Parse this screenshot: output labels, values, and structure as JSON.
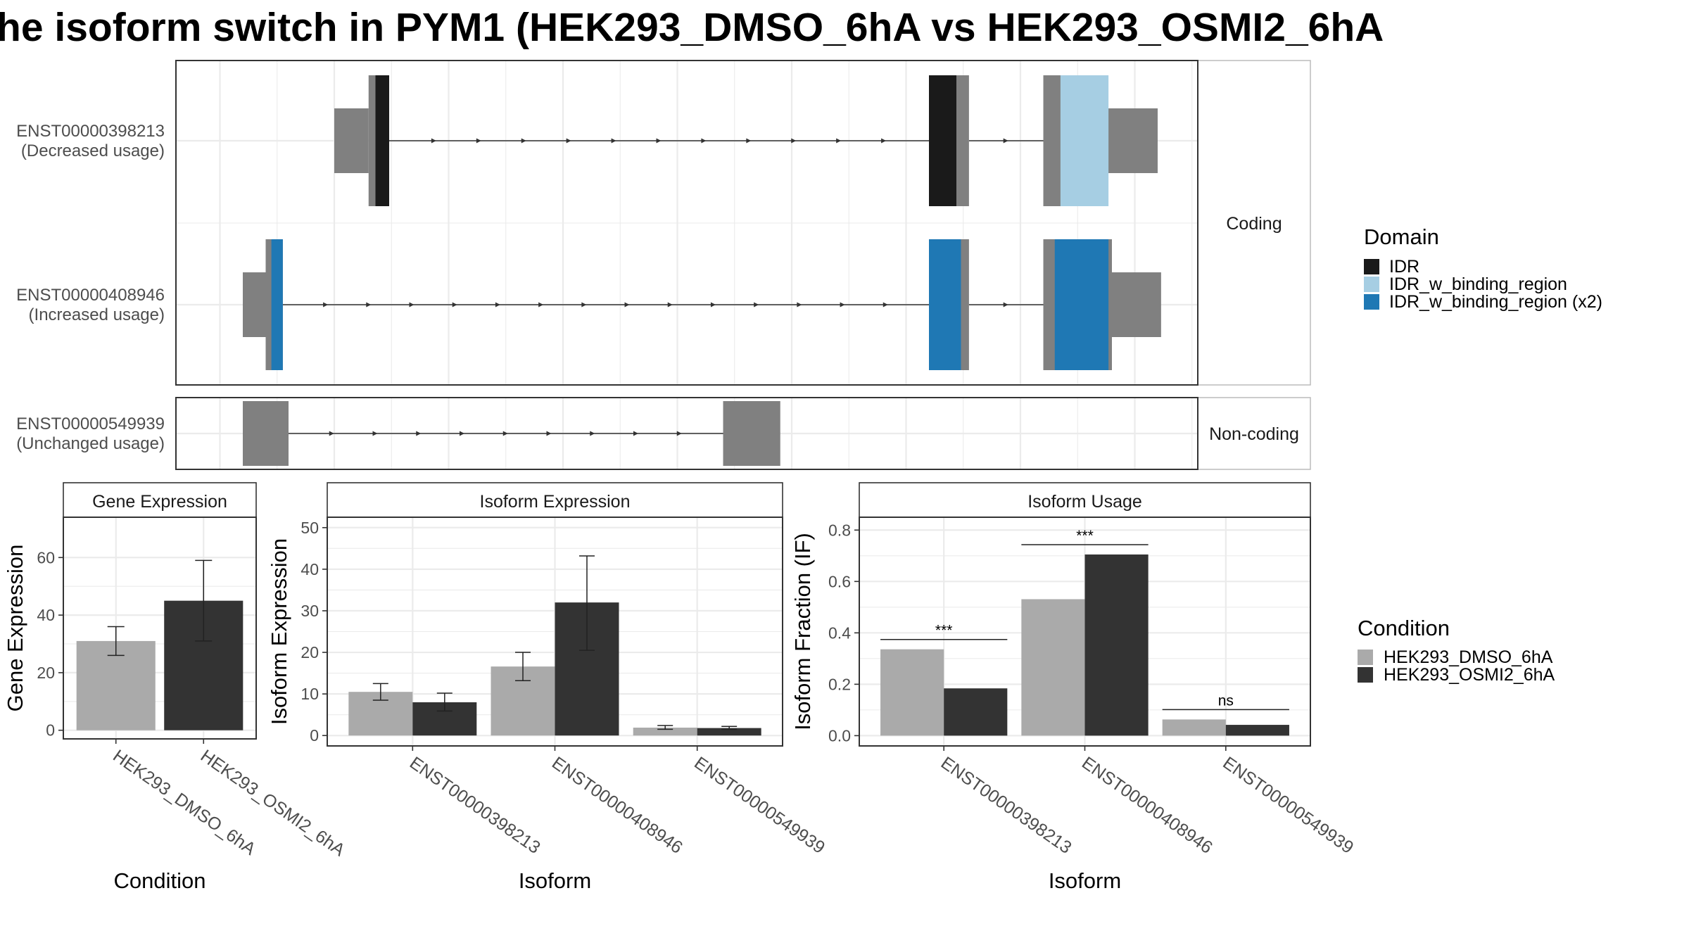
{
  "title": "he isoform switch in PYM1 (HEK293_DMSO_6hA vs HEK293_OSMI2_6hA",
  "colors": {
    "exon": "#808080",
    "intron": "#333333",
    "IDR": "#1a1a1a",
    "IDR_w_binding_region": "#a6cee3",
    "IDR_w_binding_region_x2": "#1f78b4",
    "dmso": "#aaaaaa",
    "osmi": "#333333",
    "panel_border": "#333333",
    "strip_border": "#bbbbbb",
    "grid": "#ebebeb",
    "text": "#4d4d4d"
  },
  "structure": {
    "strips": [
      "Coding",
      "Non-coding"
    ],
    "transcripts": [
      {
        "id": "ENST00000398213",
        "usage": "(Decreased usage)",
        "group": "Coding",
        "exons": [
          {
            "x0": 0.0,
            "x1": 0.3,
            "type": "utr"
          },
          {
            "x0": 0.3,
            "x1": 0.36,
            "type": "cds"
          },
          {
            "x0": 5.2,
            "x1": 5.55,
            "type": "cds"
          },
          {
            "x0": 6.2,
            "x1": 6.6,
            "type": "cds"
          },
          {
            "x0": 6.6,
            "x1": 7.2,
            "type": "utr"
          }
        ],
        "domains": [
          {
            "x0": 0.36,
            "x1": 0.48,
            "type": "IDR"
          },
          {
            "x0": 5.2,
            "x1": 5.44,
            "type": "IDR"
          },
          {
            "x0": 6.35,
            "x1": 6.77,
            "type": "IDR_w_binding_region"
          }
        ],
        "intron": [
          0.48,
          5.2,
          5.55,
          6.2
        ]
      },
      {
        "id": "ENST00000408946",
        "usage": "(Increased usage)",
        "group": "Coding",
        "exons": [
          {
            "x0": -0.8,
            "x1": -0.6,
            "type": "utr"
          },
          {
            "x0": -0.6,
            "x1": -0.45,
            "type": "cds"
          },
          {
            "x0": 5.2,
            "x1": 5.55,
            "type": "cds"
          },
          {
            "x0": 6.2,
            "x1": 6.8,
            "type": "cds"
          },
          {
            "x0": 6.8,
            "x1": 7.23,
            "type": "utr"
          }
        ],
        "domains": [
          {
            "x0": -0.55,
            "x1": -0.45,
            "type": "IDR_w_binding_region_x2"
          },
          {
            "x0": 5.2,
            "x1": 5.48,
            "type": "IDR_w_binding_region_x2"
          },
          {
            "x0": 6.3,
            "x1": 6.77,
            "type": "IDR_w_binding_region_x2"
          }
        ],
        "intron": [
          -0.45,
          5.2,
          5.55,
          6.2
        ]
      },
      {
        "id": "ENST00000549939",
        "usage": "(Unchanged usage)",
        "group": "Non-coding",
        "exons": [
          {
            "x0": -0.8,
            "x1": -0.4,
            "type": "utr"
          },
          {
            "x0": 3.4,
            "x1": 3.9,
            "type": "utr"
          }
        ],
        "domains": [],
        "intron": [
          -0.4,
          3.4
        ]
      }
    ],
    "domain_legend_title": "Domain",
    "domain_legend": [
      {
        "label": "IDR",
        "color": "#1a1a1a"
      },
      {
        "label": "IDR_w_binding_region",
        "color": "#a6cee3"
      },
      {
        "label": "IDR_w_binding_region (x2)",
        "color": "#1f78b4"
      }
    ]
  },
  "chart_data": [
    {
      "type": "bar",
      "title": "Gene Expression",
      "xlabel": "Condition",
      "ylabel": "Gene Expression",
      "categories": [
        "HEK293_DMSO_6hA",
        "HEK293_OSMI2_6hA"
      ],
      "values": [
        31,
        45
      ],
      "errors": [
        [
          26,
          36
        ],
        [
          31,
          59
        ]
      ],
      "ylim": [
        -3,
        74
      ],
      "yticks": [
        0,
        20,
        40,
        60
      ]
    },
    {
      "type": "bar",
      "title": "Isoform Expression",
      "xlabel": "Isoform",
      "ylabel": "Isoform Expression",
      "categories": [
        "ENST00000398213",
        "ENST00000408946",
        "ENST00000549939"
      ],
      "series": [
        {
          "name": "HEK293_DMSO_6hA",
          "values": [
            10.5,
            16.6,
            1.9
          ],
          "errors": [
            [
              8.5,
              12.5
            ],
            [
              13.2,
              20.0
            ],
            [
              1.5,
              2.4
            ]
          ]
        },
        {
          "name": "HEK293_OSMI2_6hA",
          "values": [
            8.0,
            32.0,
            1.8
          ],
          "errors": [
            [
              5.9,
              10.2
            ],
            [
              20.5,
              43.2
            ],
            [
              1.5,
              2.2
            ]
          ]
        }
      ],
      "ylim": [
        -2.5,
        52.5
      ],
      "yticks": [
        0,
        10,
        20,
        30,
        40,
        50
      ]
    },
    {
      "type": "bar",
      "title": "Isoform Usage",
      "xlabel": "Isoform",
      "ylabel": "Isoform Fraction (IF)",
      "categories": [
        "ENST00000398213",
        "ENST00000408946",
        "ENST00000549939"
      ],
      "series": [
        {
          "name": "HEK293_DMSO_6hA",
          "values": [
            0.336,
            0.531,
            0.063
          ]
        },
        {
          "name": "HEK293_OSMI2_6hA",
          "values": [
            0.184,
            0.705,
            0.042
          ]
        }
      ],
      "significance": [
        "***",
        "***",
        "ns"
      ],
      "ylim": [
        -0.04,
        0.85
      ],
      "yticks": [
        0.0,
        0.2,
        0.4,
        0.6,
        0.8
      ]
    }
  ],
  "condition_legend": {
    "title": "Condition",
    "items": [
      {
        "label": "HEK293_DMSO_6hA",
        "color": "#aaaaaa"
      },
      {
        "label": "HEK293_OSMI2_6hA",
        "color": "#333333"
      }
    ]
  }
}
